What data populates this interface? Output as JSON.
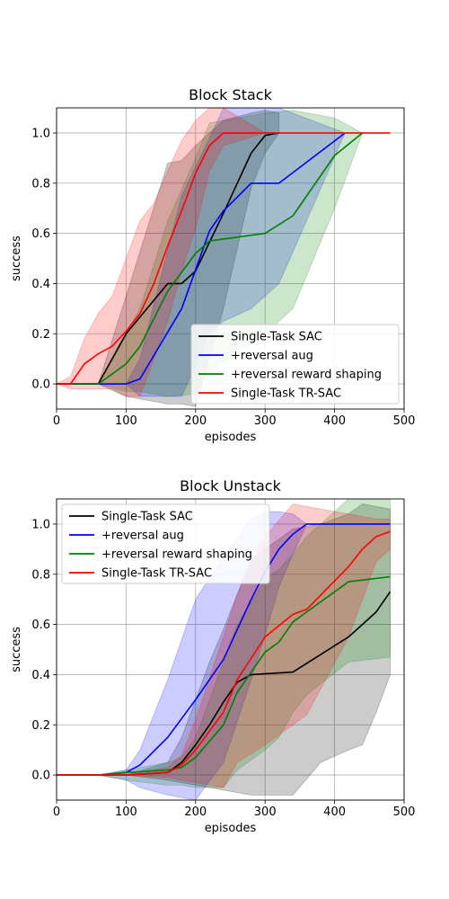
{
  "chart_data": [
    {
      "type": "line",
      "title": "Block Stack",
      "xlabel": "episodes",
      "ylabel": "success",
      "xlim": [
        0,
        500
      ],
      "ylim": [
        -0.1,
        1.1
      ],
      "xticks": [
        0,
        100,
        200,
        300,
        400,
        500
      ],
      "yticks": [
        0.0,
        0.2,
        0.4,
        0.6,
        0.8,
        1.0
      ],
      "grid": true,
      "legend_position": "lower-right",
      "series": [
        {
          "name": "Single-Task SAC",
          "color": "#000000",
          "x": [
            0,
            20,
            60,
            100,
            160,
            180,
            200,
            240,
            280,
            300,
            320
          ],
          "y": [
            0,
            0,
            0,
            0.2,
            0.4,
            0.4,
            0.45,
            0.68,
            0.92,
            0.99,
            1.0
          ],
          "upper": [
            0,
            0,
            0,
            0.35,
            0.88,
            0.89,
            0.95,
            1.05,
            1.08,
            1.09,
            1.08
          ],
          "lower": [
            0,
            0,
            0,
            -0.05,
            -0.08,
            -0.08,
            -0.09,
            0.3,
            0.78,
            0.92,
            1.0
          ]
        },
        {
          "name": "+reversal aug",
          "color": "#0000ff",
          "x": [
            0,
            60,
            100,
            120,
            180,
            220,
            240,
            280,
            320,
            415
          ],
          "y": [
            0,
            0,
            0,
            0.02,
            0.3,
            0.61,
            0.69,
            0.8,
            0.8,
            1.0
          ],
          "upper": [
            0,
            0,
            0,
            0.1,
            0.75,
            0.98,
            1.1,
            1.1,
            1.1,
            1.0
          ],
          "lower": [
            0,
            0,
            0,
            -0.05,
            -0.05,
            0.2,
            0.25,
            0.3,
            0.4,
            1.0
          ]
        },
        {
          "name": "+reversal reward shaping",
          "color": "#008000",
          "x": [
            0,
            60,
            100,
            120,
            160,
            200,
            220,
            300,
            340,
            400,
            440
          ],
          "y": [
            0,
            0,
            0.08,
            0.15,
            0.37,
            0.52,
            0.57,
            0.6,
            0.67,
            0.91,
            1.0
          ],
          "upper": [
            0,
            0,
            0.2,
            0.3,
            0.65,
            0.9,
            1.04,
            1.08,
            1.09,
            1.06,
            1.0
          ],
          "lower": [
            0,
            0,
            -0.03,
            -0.03,
            -0.05,
            -0.04,
            0.05,
            0.2,
            0.3,
            0.7,
            1.0
          ]
        },
        {
          "name": "Single-Task TR-SAC",
          "color": "#ff0000",
          "x": [
            0,
            20,
            40,
            60,
            80,
            100,
            120,
            140,
            160,
            180,
            200,
            220,
            240,
            300,
            480
          ],
          "y": [
            0,
            0,
            0.08,
            0.12,
            0.15,
            0.21,
            0.28,
            0.4,
            0.55,
            0.69,
            0.84,
            0.95,
            1.0,
            1.0,
            1.0
          ],
          "upper": [
            0,
            0.03,
            0.18,
            0.28,
            0.35,
            0.5,
            0.65,
            0.72,
            0.85,
            0.97,
            1.05,
            1.1,
            1.1,
            1.0,
            1.0
          ],
          "lower": [
            0,
            -0.02,
            -0.02,
            -0.02,
            -0.02,
            -0.05,
            -0.05,
            0.1,
            0.25,
            0.45,
            0.62,
            0.85,
            0.95,
            1.0,
            1.0
          ]
        }
      ]
    },
    {
      "type": "line",
      "title": "Block Unstack",
      "xlabel": "episodes",
      "ylabel": "success",
      "xlim": [
        0,
        500
      ],
      "ylim": [
        -0.1,
        1.1
      ],
      "xticks": [
        0,
        100,
        200,
        300,
        400,
        500
      ],
      "yticks": [
        0.0,
        0.2,
        0.4,
        0.6,
        0.8,
        1.0
      ],
      "grid": true,
      "legend_position": "upper-left",
      "series": [
        {
          "name": "Single-Task SAC",
          "color": "#000000",
          "x": [
            0,
            60,
            100,
            160,
            180,
            200,
            220,
            240,
            260,
            280,
            340,
            380,
            420,
            440,
            460,
            480
          ],
          "y": [
            0,
            0,
            0,
            0.01,
            0.05,
            0.12,
            0.2,
            0.29,
            0.37,
            0.4,
            0.41,
            0.48,
            0.55,
            0.6,
            0.65,
            0.73
          ],
          "upper": [
            0,
            0,
            0,
            0.05,
            0.15,
            0.3,
            0.45,
            0.58,
            0.72,
            0.86,
            0.98,
            1.0,
            1.04,
            1.08,
            1.07,
            1.06
          ],
          "lower": [
            0,
            0,
            0,
            -0.02,
            -0.03,
            -0.04,
            -0.05,
            -0.06,
            -0.07,
            -0.08,
            -0.08,
            0.05,
            0.1,
            0.12,
            0.25,
            0.4
          ]
        },
        {
          "name": "+reversal aug",
          "color": "#0000ff",
          "x": [
            0,
            60,
            100,
            120,
            160,
            200,
            240,
            280,
            300,
            320,
            340,
            360,
            400,
            480
          ],
          "y": [
            0,
            0,
            0.01,
            0.04,
            0.15,
            0.3,
            0.46,
            0.7,
            0.81,
            0.9,
            0.96,
            1.0,
            1.0,
            1.0
          ],
          "upper": [
            0,
            0,
            0.02,
            0.1,
            0.38,
            0.7,
            0.87,
            1.02,
            1.05,
            1.05,
            1.04,
            1.0,
            1.0,
            1.0
          ],
          "lower": [
            0,
            0,
            -0.02,
            -0.05,
            -0.08,
            -0.1,
            0.05,
            0.38,
            0.56,
            0.75,
            0.88,
            1.0,
            1.0,
            1.0
          ]
        },
        {
          "name": "+reversal reward shaping",
          "color": "#008000",
          "x": [
            0,
            60,
            100,
            160,
            180,
            200,
            240,
            260,
            300,
            320,
            340,
            360,
            420,
            480
          ],
          "y": [
            0,
            0,
            0.01,
            0.02,
            0.03,
            0.07,
            0.2,
            0.33,
            0.49,
            0.53,
            0.61,
            0.65,
            0.77,
            0.79
          ],
          "upper": [
            0,
            0,
            0.02,
            0.05,
            0.07,
            0.15,
            0.45,
            0.6,
            0.78,
            0.82,
            0.88,
            0.95,
            1.1,
            1.1
          ],
          "lower": [
            0,
            0,
            -0.02,
            -0.04,
            -0.04,
            -0.05,
            -0.05,
            0.02,
            0.1,
            0.15,
            0.25,
            0.32,
            0.45,
            0.47
          ]
        },
        {
          "name": "Single-Task TR-SAC",
          "color": "#ff0000",
          "x": [
            0,
            60,
            100,
            160,
            180,
            200,
            240,
            260,
            300,
            340,
            360,
            420,
            440,
            460,
            480
          ],
          "y": [
            0,
            0,
            0,
            0.01,
            0.04,
            0.1,
            0.25,
            0.38,
            0.55,
            0.64,
            0.66,
            0.83,
            0.9,
            0.95,
            0.97
          ],
          "upper": [
            0,
            0,
            0,
            0.03,
            0.08,
            0.22,
            0.55,
            0.72,
            0.95,
            1.08,
            1.07,
            1.04,
            1.03,
            1.02,
            1.02
          ],
          "lower": [
            0,
            0,
            0,
            -0.01,
            -0.02,
            -0.03,
            -0.05,
            0.05,
            0.12,
            0.2,
            0.24,
            0.55,
            0.7,
            0.85,
            0.9
          ]
        }
      ]
    }
  ]
}
